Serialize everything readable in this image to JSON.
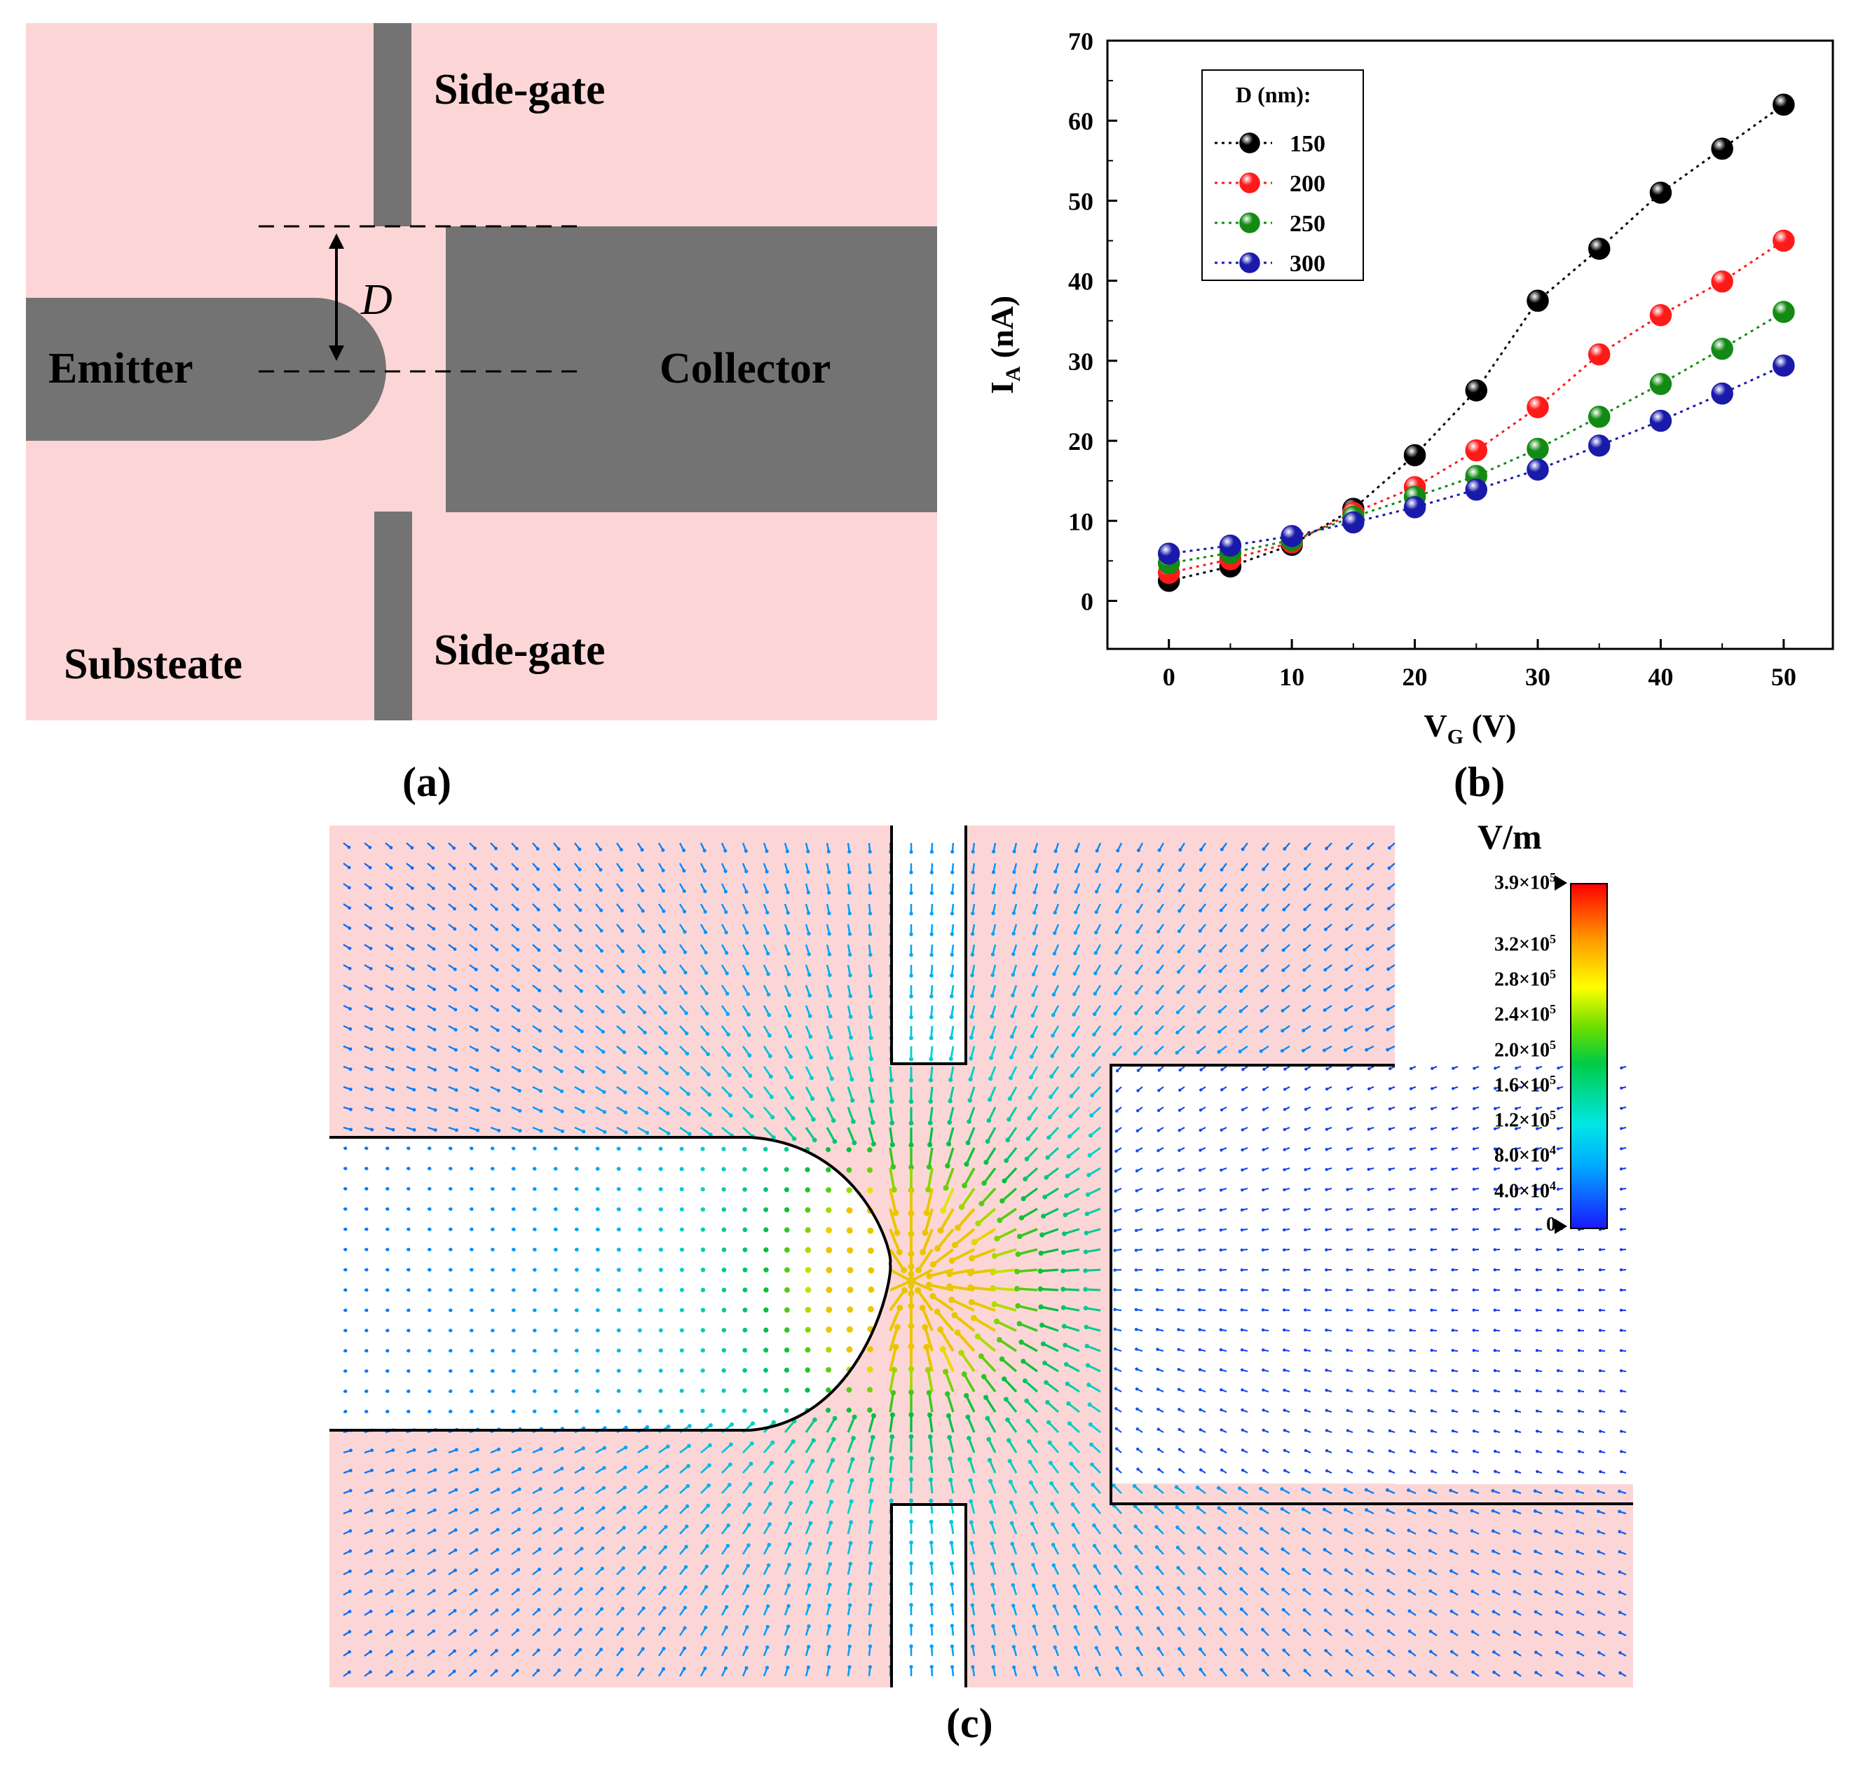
{
  "panel_a": {
    "labels": {
      "side_gate_top": "Side-gate",
      "side_gate_bottom": "Side-gate",
      "emitter": "Emitter",
      "collector": "Collector",
      "substrate": "Substeate",
      "gap": "D"
    },
    "caption": "(a)",
    "colors": {
      "substrate": "#fcd6d6",
      "electrode": "#737373"
    }
  },
  "panel_b": {
    "caption": "(b)",
    "chart_data": {
      "type": "line",
      "x": [
        0,
        5,
        10,
        15,
        20,
        25,
        30,
        35,
        40,
        45,
        50
      ],
      "series": [
        {
          "name": "150",
          "color": "#000000",
          "values": [
            2.5,
            4.3,
            7.0,
            11.5,
            18.2,
            26.3,
            37.5,
            44.0,
            51.0,
            56.5,
            62.0
          ]
        },
        {
          "name": "200",
          "color": "#ff1a1a",
          "values": [
            3.5,
            5.2,
            7.3,
            11.0,
            14.2,
            18.8,
            24.2,
            30.8,
            35.7,
            39.9,
            45.0
          ]
        },
        {
          "name": "250",
          "color": "#138a13",
          "values": [
            4.7,
            6.0,
            7.6,
            10.5,
            13.0,
            15.6,
            19.0,
            23.0,
            27.1,
            31.5,
            36.1
          ]
        },
        {
          "name": "300",
          "color": "#1a1aaa",
          "values": [
            5.9,
            6.9,
            8.1,
            9.8,
            11.7,
            13.9,
            16.4,
            19.4,
            22.5,
            25.9,
            29.4
          ]
        }
      ],
      "legend_title": "D (nm):",
      "legend_position": "top-left",
      "xlabel_main": "V",
      "xlabel_sub": "G",
      "xlabel_unit": "(V)",
      "ylabel_main": "I",
      "ylabel_sub": "A",
      "ylabel_unit": "(nA)",
      "xlim": [
        -5,
        54
      ],
      "ylim": [
        -6,
        70
      ],
      "xticks": [
        "0",
        "10",
        "20",
        "30",
        "40",
        "50"
      ],
      "yticks": [
        "0",
        "10",
        "20",
        "30",
        "40",
        "50",
        "60",
        "70"
      ],
      "grid": false
    }
  },
  "panel_c": {
    "caption": "(c)",
    "colorbar": {
      "unit": "V/m",
      "ticks": [
        {
          "label": "3.9×10",
          "exp": "5",
          "value": 390000
        },
        {
          "label": "3.2×10",
          "exp": "5",
          "value": 320000
        },
        {
          "label": "2.8×10",
          "exp": "5",
          "value": 280000
        },
        {
          "label": "2.4×10",
          "exp": "5",
          "value": 240000
        },
        {
          "label": "2.0×10",
          "exp": "5",
          "value": 200000
        },
        {
          "label": "1.6×10",
          "exp": "5",
          "value": 160000
        },
        {
          "label": "1.2×10",
          "exp": "5",
          "value": 120000
        },
        {
          "label": "8.0×10",
          "exp": "4",
          "value": 80000
        },
        {
          "label": "4.0×10",
          "exp": "4",
          "value": 40000
        },
        {
          "label": "0",
          "exp": "",
          "value": 0
        }
      ],
      "max": 390000
    },
    "colors": {
      "background": "#fcd6d6",
      "outline": "#000000"
    }
  }
}
